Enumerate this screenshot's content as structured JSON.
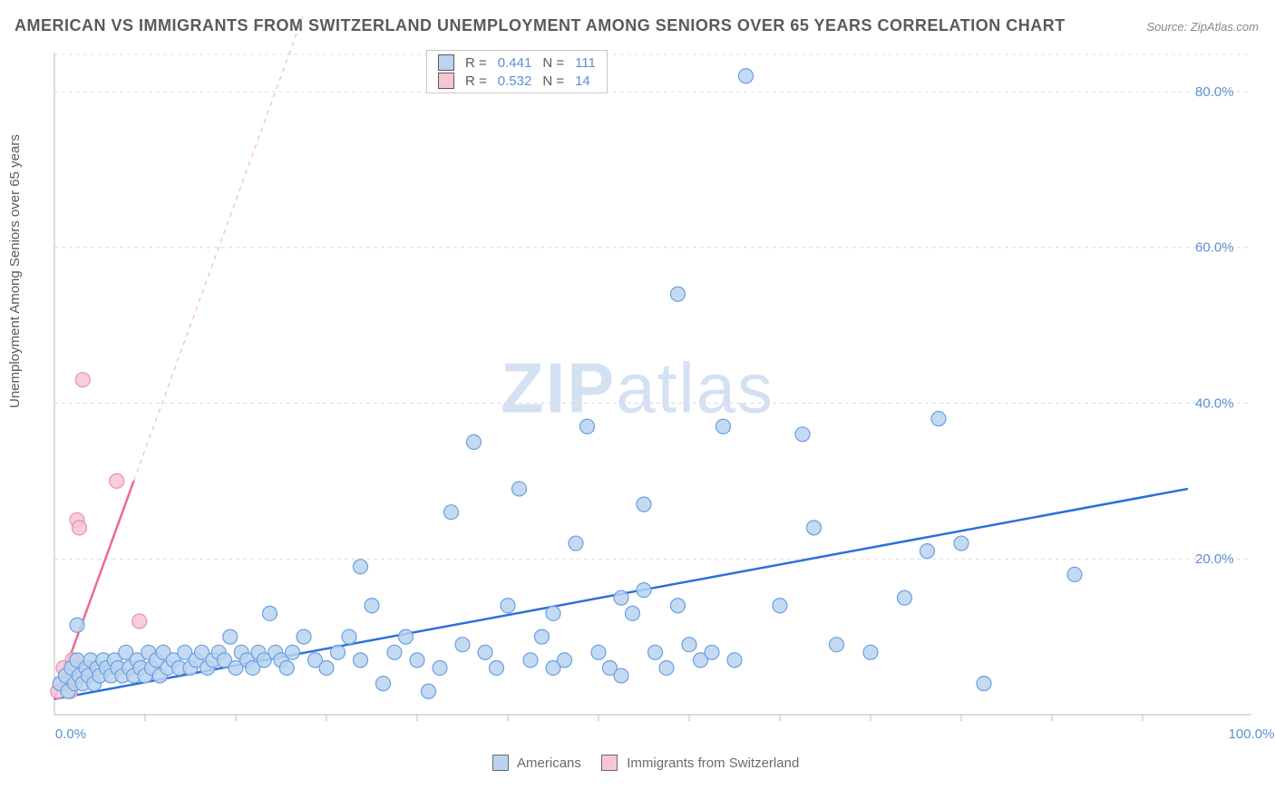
{
  "title": "AMERICAN VS IMMIGRANTS FROM SWITZERLAND UNEMPLOYMENT AMONG SENIORS OVER 65 YEARS CORRELATION CHART",
  "source_label": "Source: ",
  "source_name": "ZipAtlas.com",
  "y_axis_label": "Unemployment Among Seniors over 65 years",
  "watermark_bold": "ZIP",
  "watermark_light": "atlas",
  "chart": {
    "type": "scatter",
    "xlim": [
      0,
      100
    ],
    "ylim": [
      0,
      85
    ],
    "x_ticks_minor": [
      8,
      16,
      24,
      32,
      40,
      48,
      56,
      64,
      72,
      80,
      88,
      96
    ],
    "y_grid": [
      20,
      40,
      60,
      80
    ],
    "y_tick_labels": [
      "20.0%",
      "40.0%",
      "60.0%",
      "80.0%"
    ],
    "x_min_label": "0.0%",
    "x_max_label": "100.0%",
    "background_color": "#ffffff",
    "grid_color": "#dcdcdc",
    "axis_color": "#c8c8c8",
    "marker_radius": 8,
    "series": [
      {
        "name": "Americans",
        "color_fill": "#b9d3f0",
        "color_stroke": "#6b9fe0",
        "R": "0.441",
        "N": "111",
        "trend": {
          "x1": 0,
          "y1": 2,
          "x2": 100,
          "y2": 29,
          "color": "#2d6fdb"
        },
        "points": [
          [
            0.5,
            4
          ],
          [
            1,
            5
          ],
          [
            1.2,
            3
          ],
          [
            1.5,
            6
          ],
          [
            1.8,
            4
          ],
          [
            2,
            7
          ],
          [
            2,
            11.5
          ],
          [
            2.2,
            5
          ],
          [
            2.5,
            4
          ],
          [
            2.8,
            6
          ],
          [
            3,
            5
          ],
          [
            3.2,
            7
          ],
          [
            3.5,
            4
          ],
          [
            3.8,
            6
          ],
          [
            4,
            5
          ],
          [
            4.3,
            7
          ],
          [
            4.6,
            6
          ],
          [
            5,
            5
          ],
          [
            5.3,
            7
          ],
          [
            5.6,
            6
          ],
          [
            6,
            5
          ],
          [
            6.3,
            8
          ],
          [
            6.6,
            6
          ],
          [
            7,
            5
          ],
          [
            7.3,
            7
          ],
          [
            7.6,
            6
          ],
          [
            8,
            5
          ],
          [
            8.3,
            8
          ],
          [
            8.6,
            6
          ],
          [
            9,
            7
          ],
          [
            9.3,
            5
          ],
          [
            9.6,
            8
          ],
          [
            10,
            6
          ],
          [
            10.5,
            7
          ],
          [
            11,
            6
          ],
          [
            11.5,
            8
          ],
          [
            12,
            6
          ],
          [
            12.5,
            7
          ],
          [
            13,
            8
          ],
          [
            13.5,
            6
          ],
          [
            14,
            7
          ],
          [
            14.5,
            8
          ],
          [
            15,
            7
          ],
          [
            15.5,
            10
          ],
          [
            16,
            6
          ],
          [
            16.5,
            8
          ],
          [
            17,
            7
          ],
          [
            17.5,
            6
          ],
          [
            18,
            8
          ],
          [
            18.5,
            7
          ],
          [
            19,
            13
          ],
          [
            19.5,
            8
          ],
          [
            20,
            7
          ],
          [
            20.5,
            6
          ],
          [
            21,
            8
          ],
          [
            22,
            10
          ],
          [
            23,
            7
          ],
          [
            24,
            6
          ],
          [
            25,
            8
          ],
          [
            26,
            10
          ],
          [
            27,
            19
          ],
          [
            27,
            7
          ],
          [
            28,
            14
          ],
          [
            29,
            4
          ],
          [
            30,
            8
          ],
          [
            31,
            10
          ],
          [
            32,
            7
          ],
          [
            33,
            3
          ],
          [
            34,
            6
          ],
          [
            35,
            26
          ],
          [
            36,
            9
          ],
          [
            37,
            35
          ],
          [
            38,
            8
          ],
          [
            39,
            6
          ],
          [
            40,
            14
          ],
          [
            41,
            29
          ],
          [
            42,
            7
          ],
          [
            43,
            10
          ],
          [
            44,
            6
          ],
          [
            45,
            7
          ],
          [
            46,
            22
          ],
          [
            47,
            37
          ],
          [
            48,
            8
          ],
          [
            49,
            6
          ],
          [
            50,
            15
          ],
          [
            50,
            5
          ],
          [
            51,
            13
          ],
          [
            52,
            27
          ],
          [
            53,
            8
          ],
          [
            54,
            6
          ],
          [
            55,
            14
          ],
          [
            55,
            54
          ],
          [
            56,
            9
          ],
          [
            57,
            7
          ],
          [
            58,
            8
          ],
          [
            59,
            37
          ],
          [
            60,
            7
          ],
          [
            61,
            82
          ],
          [
            64,
            14
          ],
          [
            66,
            36
          ],
          [
            67,
            24
          ],
          [
            72,
            8
          ],
          [
            75,
            15
          ],
          [
            77,
            21
          ],
          [
            78,
            38
          ],
          [
            80,
            22
          ],
          [
            82,
            4
          ],
          [
            90,
            18
          ],
          [
            69,
            9
          ],
          [
            44,
            13
          ],
          [
            52,
            16
          ]
        ]
      },
      {
        "name": "Immigrants from Switzerland",
        "color_fill": "#f6c6d3",
        "color_stroke": "#ec8fa9",
        "R": "0.532",
        "N": "14",
        "trend": {
          "x1": 0,
          "y1": 2,
          "x2": 7,
          "y2": 30,
          "color": "#ec6a8f",
          "extend_x2": 22,
          "extend_y2": 90
        },
        "points": [
          [
            0.3,
            3
          ],
          [
            0.6,
            4
          ],
          [
            0.8,
            6
          ],
          [
            1.0,
            5
          ],
          [
            1.2,
            4
          ],
          [
            1.4,
            3
          ],
          [
            1.6,
            7
          ],
          [
            1.8,
            6
          ],
          [
            2.0,
            25
          ],
          [
            2.2,
            24
          ],
          [
            2.5,
            43
          ],
          [
            3.0,
            6
          ],
          [
            5.5,
            30
          ],
          [
            7.5,
            12
          ]
        ]
      }
    ]
  },
  "stats_header": {
    "r_label": "R =",
    "n_label": "N ="
  },
  "legend": {
    "series1": "Americans",
    "series2": "Immigrants from Switzerland"
  }
}
